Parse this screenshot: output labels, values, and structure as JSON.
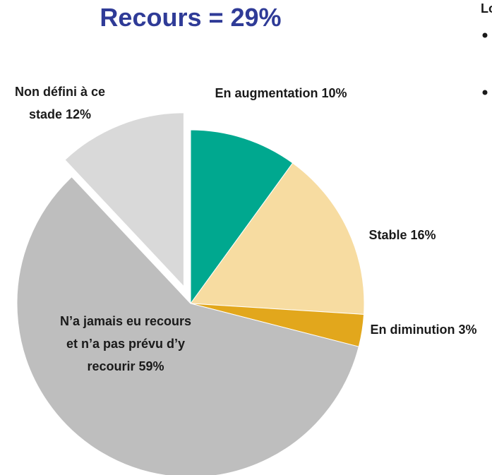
{
  "chart_data": {
    "type": "pie",
    "title": "Recours = 29%",
    "side_text": "Lo",
    "categories": [
      "En augmentation",
      "Stable",
      "En diminution",
      "N’a jamais eu recours et n’a pas prévu d’y recourir",
      "Non défini à ce stade"
    ],
    "values": [
      10,
      16,
      3,
      59,
      12
    ],
    "value_labels": [
      "10%",
      "16%",
      "3%",
      "59%",
      "12%"
    ],
    "colors": [
      "#00a88f",
      "#f7dca1",
      "#e2a71c",
      "#bebebe",
      "#d9d9d9"
    ],
    "exploded": [
      false,
      false,
      false,
      false,
      true
    ]
  }
}
